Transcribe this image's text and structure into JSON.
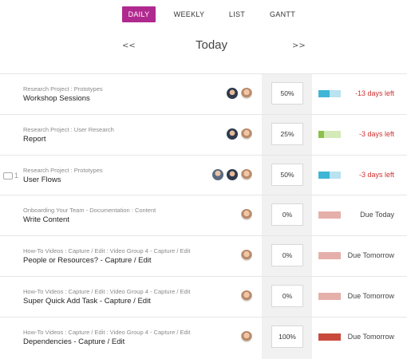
{
  "view_tabs": [
    {
      "label": "DAILY",
      "active": true
    },
    {
      "label": "WEEKLY",
      "active": false
    },
    {
      "label": "LIST",
      "active": false
    },
    {
      "label": "GANTT",
      "active": false
    }
  ],
  "date_nav": {
    "prev_label": "<<",
    "title": "Today",
    "next_label": ">>"
  },
  "colors": {
    "accent": "#b0298f",
    "bar_blue": "#3fb6d6",
    "bar_blue_light": "#b9e3f0",
    "bar_green": "#8cc04a",
    "bar_green_light": "#d4eab8",
    "bar_pink": "#e6b0aa",
    "bar_red": "#c94a3d",
    "overdue": "#d03030"
  },
  "tasks": [
    {
      "path": "Research Project : Prototypes",
      "name": "Workshop Sessions",
      "comments": "",
      "avatars": [
        "c",
        "b"
      ],
      "progress_label": "50%",
      "progress": 0.5,
      "bar_color": "#3fb6d6",
      "bar_rest": "#b9e3f0",
      "due": "-13 days left",
      "overdue": true
    },
    {
      "path": "Research Project : User Research",
      "name": "Report",
      "comments": "",
      "avatars": [
        "c",
        "b"
      ],
      "progress_label": "25%",
      "progress": 0.25,
      "bar_color": "#8cc04a",
      "bar_rest": "#d4eab8",
      "due": "-3 days left",
      "overdue": true
    },
    {
      "path": "Research Project : Prototypes",
      "name": "User Flows",
      "comments": "1",
      "avatars": [
        "a",
        "c",
        "b"
      ],
      "progress_label": "50%",
      "progress": 0.5,
      "bar_color": "#3fb6d6",
      "bar_rest": "#b9e3f0",
      "due": "-3 days left",
      "overdue": true
    },
    {
      "path": "Onboarding Your Team - Documentation : Content",
      "name": "Write Content",
      "comments": "",
      "avatars": [
        "b"
      ],
      "progress_label": "0%",
      "progress": 0,
      "bar_color": "#e6b0aa",
      "bar_rest": "#e6b0aa",
      "due": "Due Today",
      "overdue": false
    },
    {
      "path": "How-To Videos : Capture / Edit : Video Group 4 - Capture / Edit",
      "name": "People or Resources? - Capture / Edit",
      "comments": "",
      "avatars": [
        "b"
      ],
      "progress_label": "0%",
      "progress": 0,
      "bar_color": "#e6b0aa",
      "bar_rest": "#e6b0aa",
      "due": "Due Tomorrow",
      "overdue": false
    },
    {
      "path": "How-To Videos : Capture / Edit : Video Group 4 - Capture / Edit",
      "name": "Super Quick Add Task - Capture / Edit",
      "comments": "",
      "avatars": [
        "b"
      ],
      "progress_label": "0%",
      "progress": 0,
      "bar_color": "#e6b0aa",
      "bar_rest": "#e6b0aa",
      "due": "Due Tomorrow",
      "overdue": false
    },
    {
      "path": "How-To Videos : Capture / Edit : Video Group 4 - Capture / Edit",
      "name": "Dependencies - Capture / Edit",
      "comments": "",
      "avatars": [
        "b"
      ],
      "progress_label": "100%",
      "progress": 1,
      "bar_color": "#c94a3d",
      "bar_rest": "#c94a3d",
      "due": "Due Tomorrow",
      "overdue": false
    }
  ]
}
